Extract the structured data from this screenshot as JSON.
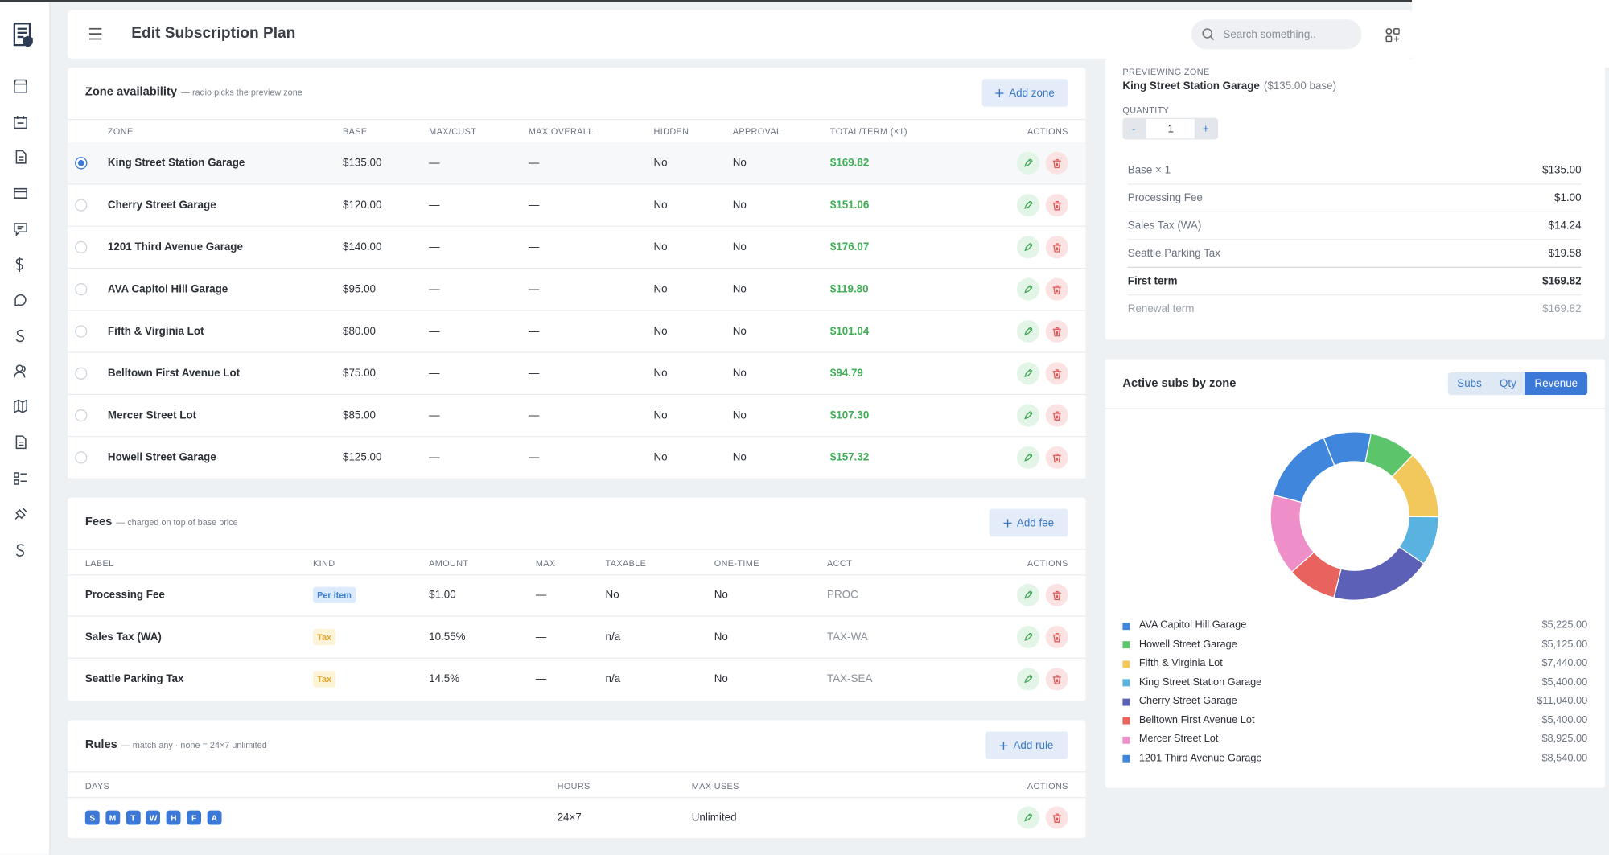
{
  "header": {
    "title": "Edit Subscription Plan",
    "search_placeholder": "Search something.."
  },
  "zones": {
    "title": "Zone availability",
    "subtitle": "— radio picks the preview zone",
    "add_button": "Add zone",
    "columns": [
      "ZONE",
      "BASE",
      "MAX/CUST",
      "MAX OVERALL",
      "HIDDEN",
      "APPROVAL",
      "TOTAL/TERM (×1)",
      "ACTIONS"
    ],
    "rows": [
      [
        "King Street Station Garage",
        "$135.00",
        "—",
        "—",
        "No",
        "No",
        "$169.82"
      ],
      [
        "Cherry Street Garage",
        "$120.00",
        "—",
        "—",
        "No",
        "No",
        "$151.06"
      ],
      [
        "1201 Third Avenue Garage",
        "$140.00",
        "—",
        "—",
        "No",
        "No",
        "$176.07"
      ],
      [
        "AVA Capitol Hill Garage",
        "$95.00",
        "—",
        "—",
        "No",
        "No",
        "$119.80"
      ],
      [
        "Fifth & Virginia Lot",
        "$80.00",
        "—",
        "—",
        "No",
        "No",
        "$101.04"
      ],
      [
        "Belltown First Avenue Lot",
        "$75.00",
        "—",
        "—",
        "No",
        "No",
        "$94.79"
      ],
      [
        "Mercer Street Lot",
        "$85.00",
        "—",
        "—",
        "No",
        "No",
        "$107.30"
      ],
      [
        "Howell Street Garage",
        "$125.00",
        "—",
        "—",
        "No",
        "No",
        "$157.32"
      ]
    ]
  },
  "fees": {
    "title": "Fees",
    "subtitle": "— charged on top of base price",
    "add_button": "Add fee",
    "columns": [
      "LABEL",
      "KIND",
      "AMOUNT",
      "MAX",
      "TAXABLE",
      "ONE-TIME",
      "ACCT",
      "ACTIONS"
    ],
    "rows": [
      {
        "label": "Processing Fee",
        "kind": "Per item",
        "kind_color": "#3b7dd8",
        "kind_bg": "#dcebfb",
        "amount": "$1.00",
        "max": "—",
        "taxable": "No",
        "one_time": "No",
        "acct": "PROC"
      },
      {
        "label": "Sales Tax (WA)",
        "kind": "Tax",
        "kind_color": "#e0a92a",
        "kind_bg": "#fdf3d6",
        "amount": "10.55%",
        "max": "—",
        "taxable": "n/a",
        "one_time": "No",
        "acct": "TAX-WA"
      },
      {
        "label": "Seattle Parking Tax",
        "kind": "Tax",
        "kind_color": "#e0a92a",
        "kind_bg": "#fdf3d6",
        "amount": "14.5%",
        "max": "—",
        "taxable": "n/a",
        "one_time": "No",
        "acct": "TAX-SEA"
      }
    ]
  },
  "rules": {
    "title": "Rules",
    "subtitle": "— match any · none = 24×7 unlimited",
    "add_button": "Add rule",
    "columns": [
      "DAYS",
      "HOURS",
      "MAX USES",
      "ACTIONS"
    ],
    "rows": [
      {
        "days": [
          "S",
          "M",
          "T",
          "W",
          "H",
          "F",
          "A"
        ],
        "hours": "24×7",
        "max_uses": "Unlimited"
      }
    ]
  },
  "preview": {
    "zone_label": "PREVIEWING ZONE",
    "zone": "King Street Station Garage",
    "base_note": "($135.00 base)",
    "quantity_label": "QUANTITY",
    "minus": "-",
    "quantity": "1",
    "plus": "+",
    "lines": [
      [
        "Base × 1",
        "$135.00"
      ],
      [
        "Processing Fee",
        "$1.00"
      ],
      [
        "Sales Tax (WA)",
        "$14.24"
      ],
      [
        "Seattle Parking Tax",
        "$19.58"
      ],
      [
        "First term",
        "$169.82"
      ],
      [
        "Renewal term",
        "$169.82"
      ]
    ]
  },
  "active_subs": {
    "title": "Active subs by zone",
    "tabs": [
      "Subs",
      "Qty",
      "Revenue"
    ],
    "chart_data": {
      "type": "donut",
      "series": [
        {
          "name": "AVA Capitol Hill Garage",
          "value": 5225,
          "label": "$5,225.00",
          "color": "#3f86dc"
        },
        {
          "name": "Howell Street Garage",
          "value": 5125,
          "label": "$5,125.00",
          "color": "#5cc46a"
        },
        {
          "name": "Fifth & Virginia Lot",
          "value": 7440,
          "label": "$7,440.00",
          "color": "#f2c85c"
        },
        {
          "name": "King Street Station Garage",
          "value": 5400,
          "label": "$5,400.00",
          "color": "#5ab2e0"
        },
        {
          "name": "Cherry Street Garage",
          "value": 11040,
          "label": "$11,040.00",
          "color": "#5c60b6"
        },
        {
          "name": "Belltown First Avenue Lot",
          "value": 5400,
          "label": "$5,400.00",
          "color": "#e8625e"
        },
        {
          "name": "Mercer Street Lot",
          "value": 8925,
          "label": "$8,925.00",
          "color": "#ee8fca"
        },
        {
          "name": "1201 Third Avenue Garage",
          "value": 8540,
          "label": "$8,540.00",
          "color": "#3f86dc"
        }
      ]
    }
  }
}
